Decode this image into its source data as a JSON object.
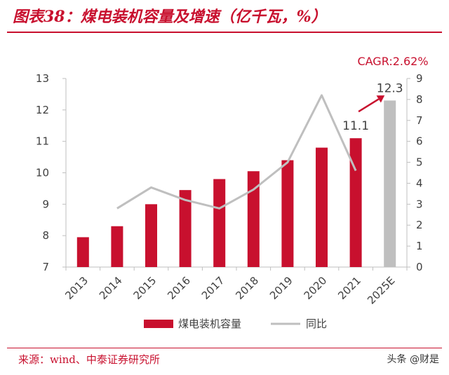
{
  "header": {
    "title": "图表38：煤电装机容量及增速（亿千瓦，%）"
  },
  "footer": {
    "source": "来源：wind、中泰证券研究所",
    "watermark": "头条 @财是"
  },
  "colors": {
    "bar": "#c8102e",
    "bar_estimate": "#bfbfbf",
    "line": "#bfbfbf",
    "accent": "#c8102e"
  },
  "chart_data": {
    "type": "bar",
    "categories": [
      "2013",
      "2014",
      "2015",
      "2016",
      "2017",
      "2018",
      "2019",
      "2020",
      "2021",
      "2025E"
    ],
    "series": [
      {
        "name": "煤电装机容量",
        "axis": "left",
        "type": "bar",
        "values": [
          7.95,
          8.3,
          9.0,
          9.45,
          9.8,
          10.05,
          10.4,
          10.8,
          11.1,
          12.3
        ]
      },
      {
        "name": "同比",
        "axis": "right",
        "type": "line",
        "values": [
          null,
          2.8,
          3.8,
          3.2,
          2.8,
          3.7,
          5.0,
          8.2,
          4.6,
          null
        ]
      }
    ],
    "estimate_categories": [
      "2025E"
    ],
    "data_labels": [
      {
        "category": "2021",
        "text": "11.1"
      },
      {
        "category": "2025E",
        "text": "12.3"
      }
    ],
    "annotation": "CAGR:2.62%",
    "ylim_left": [
      7,
      13
    ],
    "yticks_left": [
      7,
      8,
      9,
      10,
      11,
      12,
      13
    ],
    "ylim_right": [
      0,
      9
    ],
    "yticks_right": [
      0,
      1,
      2,
      3,
      4,
      5,
      6,
      7,
      8,
      9
    ],
    "grid": false,
    "legend_position": "bottom"
  }
}
